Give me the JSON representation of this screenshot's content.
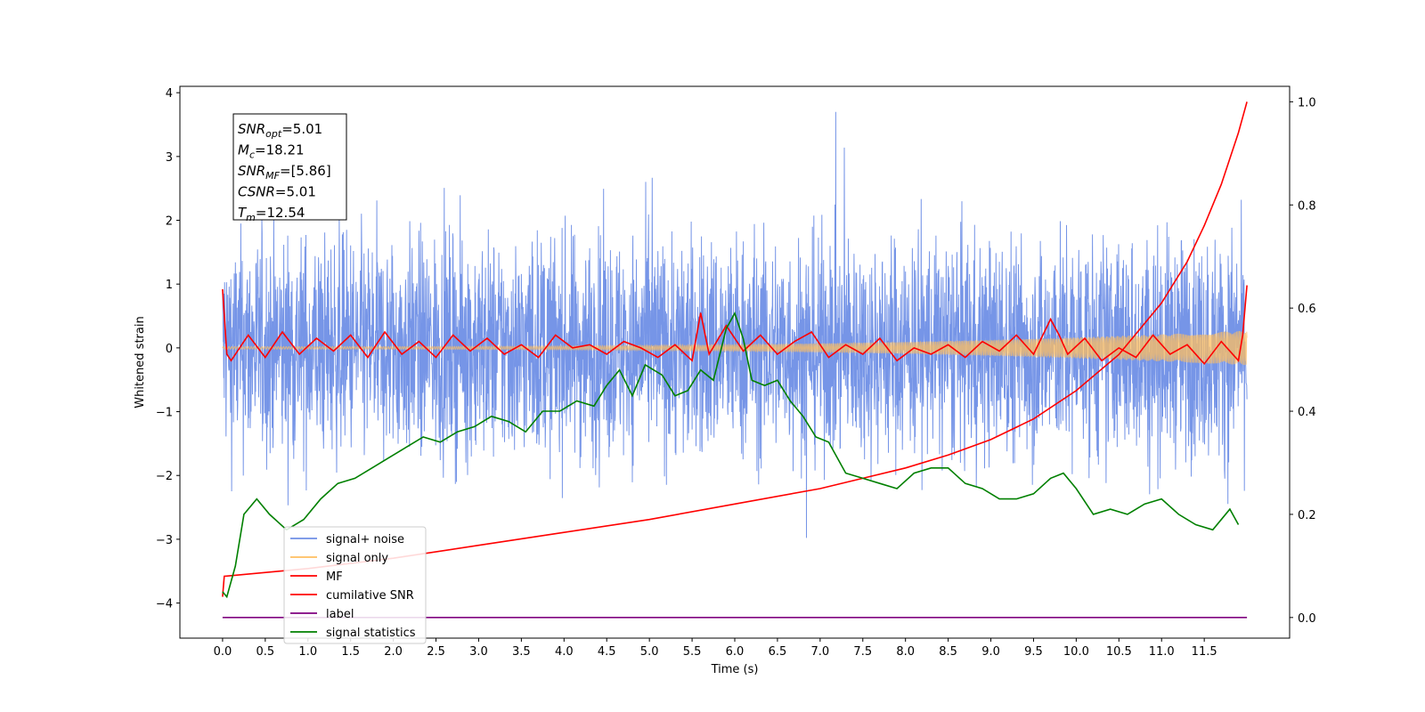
{
  "chart_data": {
    "type": "line",
    "xlabel": "Time (s)",
    "ylabel": "Whitened strain",
    "xlim": [
      -0.5,
      12.5
    ],
    "ylim": [
      -4.55,
      4.1
    ],
    "ylim_right": [
      -0.04,
      1.03
    ],
    "x_ticks": [
      "0.0",
      "0.5",
      "1.0",
      "1.5",
      "2.0",
      "2.5",
      "3.0",
      "3.5",
      "4.0",
      "4.5",
      "5.0",
      "5.5",
      "6.0",
      "6.5",
      "7.0",
      "7.5",
      "8.0",
      "8.5",
      "9.0",
      "9.5",
      "10.0",
      "10.5",
      "11.0",
      "11.5"
    ],
    "y_ticks": [
      "4",
      "3",
      "2",
      "1",
      "0",
      "−1",
      "−2",
      "−3",
      "−4"
    ],
    "y_ticks_right": [
      "1.0",
      "0.8",
      "0.6",
      "0.4",
      "0.2",
      "0.0"
    ],
    "annotation": {
      "lines": [
        {
          "sym": "SNR",
          "sub": "opt",
          "rest": "=5.01"
        },
        {
          "sym": "M",
          "sub": "c",
          "rest": "=18.21"
        },
        {
          "sym": "SNR",
          "sub": "MF",
          "rest": "=[5.86]"
        },
        {
          "sym": "CSNR",
          "sub": "",
          "rest": "=5.01"
        },
        {
          "sym": "T",
          "sub": "m",
          "rest": "=12.54"
        }
      ]
    },
    "legend": {
      "position": "lower-left",
      "entries": [
        {
          "label": "signal+ noise",
          "color": "#6f8fe6"
        },
        {
          "label": "signal only",
          "color": "#ffbf60"
        },
        {
          "label": "MF",
          "color": "#ff0000"
        },
        {
          "label": "cumilative SNR",
          "color": "#ff0000"
        },
        {
          "label": "label",
          "color": "#800080"
        },
        {
          "label": "signal statistics",
          "color": "#008000"
        }
      ]
    },
    "series": [
      {
        "name": "signal+ noise",
        "axis": "left",
        "color": "#6f8fe6",
        "style": "noise",
        "amplitude_range": [
          -3.5,
          3.7
        ]
      },
      {
        "name": "signal only",
        "axis": "left",
        "color": "#ffbf60",
        "style": "chirp",
        "amplitude_end": 0.25
      },
      {
        "name": "MF",
        "axis": "left",
        "color": "#ff0000",
        "x": [
          0.0,
          0.05,
          0.1,
          0.3,
          0.5,
          0.7,
          0.9,
          1.1,
          1.3,
          1.5,
          1.7,
          1.9,
          2.1,
          2.3,
          2.5,
          2.7,
          2.9,
          3.1,
          3.3,
          3.5,
          3.7,
          3.9,
          4.1,
          4.3,
          4.5,
          4.7,
          4.9,
          5.1,
          5.3,
          5.5,
          5.6,
          5.7,
          5.9,
          6.1,
          6.3,
          6.5,
          6.7,
          6.9,
          7.1,
          7.3,
          7.5,
          7.7,
          7.9,
          8.1,
          8.3,
          8.5,
          8.7,
          8.9,
          9.1,
          9.3,
          9.5,
          9.7,
          9.8,
          9.9,
          10.1,
          10.3,
          10.5,
          10.7,
          10.9,
          11.1,
          11.3,
          11.5,
          11.7,
          11.9,
          11.95,
          12.0
        ],
        "y": [
          0.92,
          -0.1,
          -0.2,
          0.2,
          -0.15,
          0.25,
          -0.1,
          0.15,
          -0.05,
          0.2,
          -0.15,
          0.25,
          -0.1,
          0.1,
          -0.15,
          0.2,
          -0.05,
          0.15,
          -0.1,
          0.05,
          -0.15,
          0.2,
          0.0,
          0.05,
          -0.1,
          0.1,
          0.0,
          -0.15,
          0.05,
          -0.2,
          0.55,
          -0.1,
          0.35,
          -0.05,
          0.2,
          -0.1,
          0.1,
          0.25,
          -0.15,
          0.05,
          -0.1,
          0.15,
          -0.2,
          0.0,
          -0.1,
          0.05,
          -0.15,
          0.1,
          -0.05,
          0.2,
          -0.1,
          0.45,
          0.2,
          -0.1,
          0.15,
          -0.2,
          0.0,
          -0.15,
          0.2,
          -0.1,
          0.05,
          -0.25,
          0.1,
          -0.2,
          0.2,
          0.98
        ]
      },
      {
        "name": "cumilative SNR",
        "axis": "right",
        "color": "#ff0000",
        "x": [
          0.0,
          0.02,
          1,
          2,
          3,
          4,
          5,
          6,
          7,
          7.5,
          8,
          8.5,
          9,
          9.5,
          10,
          10.5,
          11,
          11.3,
          11.5,
          11.7,
          11.9,
          12.0
        ],
        "y": [
          0.04,
          0.08,
          0.095,
          0.115,
          0.14,
          0.165,
          0.19,
          0.22,
          0.25,
          0.27,
          0.29,
          0.315,
          0.345,
          0.385,
          0.44,
          0.51,
          0.61,
          0.69,
          0.76,
          0.84,
          0.94,
          1.0
        ]
      },
      {
        "name": "label",
        "axis": "right",
        "color": "#800080",
        "x": [
          0.0,
          12.0
        ],
        "y": [
          0.0,
          0.0
        ]
      },
      {
        "name": "signal statistics",
        "axis": "right",
        "color": "#008000",
        "x": [
          0.0,
          0.05,
          0.15,
          0.25,
          0.4,
          0.55,
          0.75,
          0.95,
          1.15,
          1.35,
          1.55,
          1.75,
          1.95,
          2.15,
          2.35,
          2.55,
          2.75,
          2.95,
          3.15,
          3.35,
          3.55,
          3.75,
          3.95,
          4.15,
          4.35,
          4.5,
          4.65,
          4.8,
          4.95,
          5.15,
          5.3,
          5.45,
          5.6,
          5.75,
          5.9,
          6.0,
          6.1,
          6.2,
          6.35,
          6.5,
          6.65,
          6.8,
          6.95,
          7.1,
          7.3,
          7.5,
          7.7,
          7.9,
          8.1,
          8.3,
          8.5,
          8.7,
          8.9,
          9.1,
          9.3,
          9.5,
          9.7,
          9.85,
          10.0,
          10.2,
          10.4,
          10.6,
          10.8,
          11.0,
          11.2,
          11.4,
          11.6,
          11.8,
          11.9
        ],
        "y": [
          0.05,
          0.04,
          0.1,
          0.2,
          0.23,
          0.2,
          0.17,
          0.19,
          0.23,
          0.26,
          0.27,
          0.29,
          0.31,
          0.33,
          0.35,
          0.34,
          0.36,
          0.37,
          0.39,
          0.38,
          0.36,
          0.4,
          0.4,
          0.42,
          0.41,
          0.45,
          0.48,
          0.43,
          0.49,
          0.47,
          0.43,
          0.44,
          0.48,
          0.46,
          0.56,
          0.59,
          0.54,
          0.46,
          0.45,
          0.46,
          0.42,
          0.39,
          0.35,
          0.34,
          0.28,
          0.27,
          0.26,
          0.25,
          0.28,
          0.29,
          0.29,
          0.26,
          0.25,
          0.23,
          0.23,
          0.24,
          0.27,
          0.28,
          0.25,
          0.2,
          0.21,
          0.2,
          0.22,
          0.23,
          0.2,
          0.18,
          0.17,
          0.21,
          0.18
        ]
      }
    ]
  }
}
